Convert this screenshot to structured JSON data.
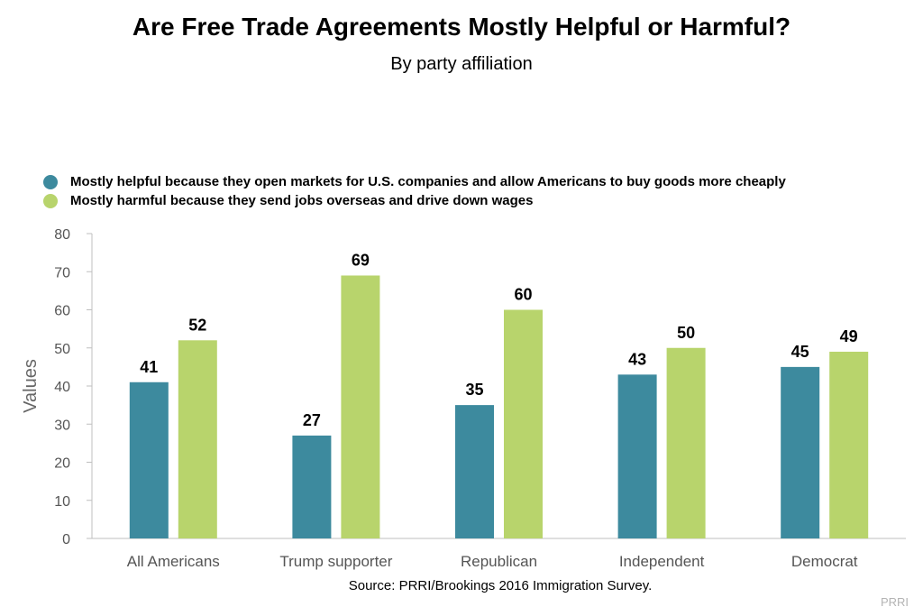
{
  "chart_data": {
    "type": "bar",
    "title": "Are Free Trade Agreements Mostly Helpful or Harmful?",
    "subtitle": "By party affiliation",
    "ylabel": "Values",
    "xlabel": "",
    "ylim": [
      0,
      80
    ],
    "yticks": [
      0,
      10,
      20,
      30,
      40,
      50,
      60,
      70,
      80
    ],
    "grid": false,
    "legend_position": "top-left",
    "categories": [
      "All Americans",
      "Trump supporter",
      "Republican",
      "Independent",
      "Democrat"
    ],
    "series": [
      {
        "name": "Mostly helpful because they open markets for U.S. companies and allow Americans to buy goods more cheaply",
        "color": "#3d8a9e",
        "values": [
          41,
          27,
          35,
          43,
          45
        ]
      },
      {
        "name": "Mostly harmful because they send jobs overseas and drive down wages",
        "color": "#b8d46c",
        "values": [
          52,
          69,
          60,
          50,
          49
        ]
      }
    ],
    "source": "Source: PRRI/Brookings 2016 Immigration Survey.",
    "credit": "PRRI"
  }
}
